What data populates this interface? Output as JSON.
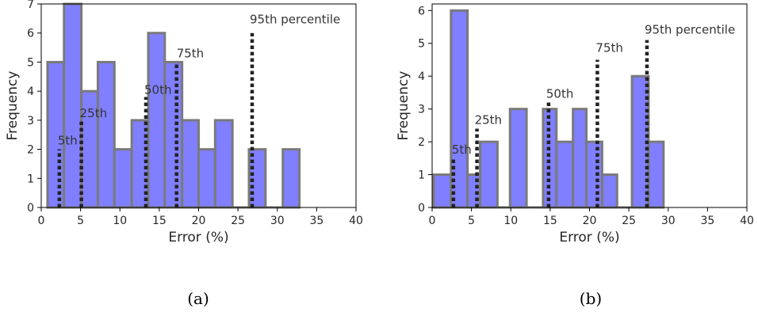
{
  "chart_data": [
    {
      "type": "bar",
      "caption": "(a)",
      "xlabel": "Error (%)",
      "ylabel": "Frequency",
      "xlim": [
        0,
        40
      ],
      "ylim": [
        0,
        7
      ],
      "xticks": [
        0,
        5,
        10,
        15,
        20,
        25,
        30,
        35,
        40
      ],
      "yticks": [
        0,
        1,
        2,
        3,
        4,
        5,
        6,
        7
      ],
      "bins": [
        {
          "x0": 0.8,
          "x1": 2.9,
          "count": 5
        },
        {
          "x0": 2.9,
          "x1": 5.1,
          "count": 7
        },
        {
          "x0": 5.1,
          "x1": 7.2,
          "count": 4
        },
        {
          "x0": 7.2,
          "x1": 9.3,
          "count": 5
        },
        {
          "x0": 9.3,
          "x1": 11.5,
          "count": 2
        },
        {
          "x0": 11.5,
          "x1": 13.6,
          "count": 3
        },
        {
          "x0": 13.6,
          "x1": 15.7,
          "count": 6
        },
        {
          "x0": 15.7,
          "x1": 17.9,
          "count": 5
        },
        {
          "x0": 17.9,
          "x1": 20.0,
          "count": 3
        },
        {
          "x0": 20.0,
          "x1": 22.1,
          "count": 2
        },
        {
          "x0": 22.1,
          "x1": 24.3,
          "count": 3
        },
        {
          "x0": 24.3,
          "x1": 26.4,
          "count": 0
        },
        {
          "x0": 26.4,
          "x1": 28.5,
          "count": 2
        },
        {
          "x0": 28.5,
          "x1": 30.7,
          "count": 0
        },
        {
          "x0": 30.7,
          "x1": 32.8,
          "count": 2
        }
      ],
      "percentiles": [
        {
          "label": "5th",
          "x": 2.3,
          "top": 2.0
        },
        {
          "label": "25th",
          "x": 5.1,
          "top": 3.0
        },
        {
          "label": "50th",
          "x": 13.3,
          "top": 3.8
        },
        {
          "label": "75th",
          "x": 17.2,
          "top": 5.0
        },
        {
          "label": "95th percentile",
          "x": 26.8,
          "top": 6.0
        }
      ]
    },
    {
      "type": "bar",
      "caption": "(b)",
      "xlabel": "Error (%)",
      "ylabel": "Frequency",
      "xlim": [
        0,
        40
      ],
      "ylim": [
        0,
        6.2
      ],
      "xticks": [
        0,
        5,
        10,
        15,
        20,
        25,
        30,
        35,
        40
      ],
      "yticks": [
        0,
        1,
        2,
        3,
        4,
        5,
        6
      ],
      "bins": [
        {
          "x0": 0.2,
          "x1": 2.4,
          "count": 1
        },
        {
          "x0": 2.4,
          "x1": 4.5,
          "count": 6
        },
        {
          "x0": 4.5,
          "x1": 6.1,
          "count": 1
        },
        {
          "x0": 6.1,
          "x1": 8.3,
          "count": 2
        },
        {
          "x0": 8.3,
          "x1": 9.9,
          "count": 0
        },
        {
          "x0": 9.9,
          "x1": 12.0,
          "count": 3
        },
        {
          "x0": 12.0,
          "x1": 14.1,
          "count": 0
        },
        {
          "x0": 14.1,
          "x1": 15.8,
          "count": 3
        },
        {
          "x0": 15.8,
          "x1": 17.9,
          "count": 2
        },
        {
          "x0": 17.9,
          "x1": 19.6,
          "count": 3
        },
        {
          "x0": 19.6,
          "x1": 21.6,
          "count": 2
        },
        {
          "x0": 21.6,
          "x1": 23.5,
          "count": 1
        },
        {
          "x0": 23.5,
          "x1": 25.4,
          "count": 0
        },
        {
          "x0": 25.4,
          "x1": 27.5,
          "count": 4
        },
        {
          "x0": 27.5,
          "x1": 29.4,
          "count": 2
        }
      ],
      "percentiles": [
        {
          "label": "5th",
          "x": 2.7,
          "top": 1.5
        },
        {
          "label": "25th",
          "x": 5.7,
          "top": 2.4
        },
        {
          "label": "50th",
          "x": 14.8,
          "top": 3.2
        },
        {
          "label": "75th",
          "x": 21.0,
          "top": 4.5
        },
        {
          "label": "95th percentile",
          "x": 27.3,
          "top": 5.1
        }
      ]
    }
  ]
}
